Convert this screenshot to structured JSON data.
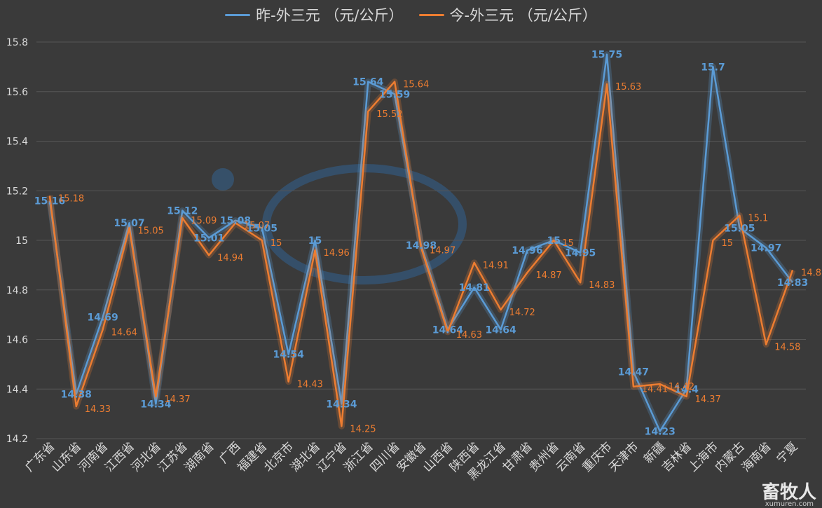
{
  "legend": {
    "series_a": "昨-外三元  （元/公斤）",
    "series_b": "今-外三元  （元/公斤）"
  },
  "watermark": {
    "brand": "畜牧人",
    "url": "xumuren.com"
  },
  "colors": {
    "series_a": "#5b9bd5",
    "series_b": "#ed7d31",
    "background": "#3a3a3a",
    "grid": "#565656"
  },
  "chart_data": {
    "type": "line",
    "categories": [
      "广东省",
      "山东省",
      "河南省",
      "江西省",
      "河北省",
      "江苏省",
      "湖南省",
      "广西",
      "福建省",
      "北京市",
      "湖北省",
      "辽宁省",
      "浙江省",
      "四川省",
      "安徽省",
      "山西省",
      "陕西省",
      "黑龙江省",
      "甘肃省",
      "贵州省",
      "云南省",
      "重庆市",
      "天津市",
      "新疆",
      "吉林省",
      "上海市",
      "内蒙古",
      "海南省",
      "宁夏"
    ],
    "series": [
      {
        "name": "昨-外三元  （元/公斤）",
        "values": [
          15.16,
          14.38,
          14.69,
          15.07,
          14.34,
          15.12,
          15.01,
          15.08,
          15.05,
          14.54,
          15,
          14.34,
          15.64,
          15.59,
          14.98,
          14.64,
          14.81,
          14.64,
          14.96,
          15,
          14.95,
          15.75,
          14.47,
          14.23,
          14.4,
          15.7,
          15.05,
          14.97,
          14.83
        ]
      },
      {
        "name": "今-外三元  （元/公斤）",
        "values": [
          15.18,
          14.33,
          14.64,
          15.05,
          14.37,
          15.09,
          14.94,
          15.07,
          15,
          14.43,
          14.96,
          14.25,
          15.52,
          15.64,
          14.97,
          14.63,
          14.91,
          14.72,
          14.87,
          15,
          14.83,
          15.63,
          14.41,
          14.42,
          14.37,
          15,
          15.1,
          14.58,
          14.88
        ]
      }
    ],
    "ylim": [
      14.2,
      15.8
    ],
    "yticks": [
      "14.2",
      "14.4",
      "14.6",
      "14.8",
      "15",
      "15.2",
      "15.4",
      "15.6",
      "15.8"
    ],
    "grid": true,
    "legend_position": "top"
  }
}
